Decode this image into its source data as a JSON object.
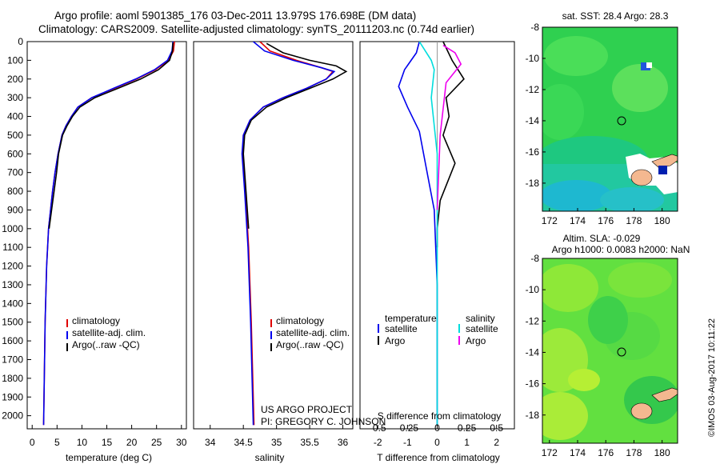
{
  "header": {
    "title_line1": "Argo profile: aoml 5901385_176 03-Dec-2011 13.979S 176.698E (DM data)",
    "title_line2": "Climatology: CARS2009. Satellite-adjusted climatology: synTS_20111203.nc (0.74d earlier)"
  },
  "colors": {
    "climatology": "#e00000",
    "satellite": "#0000ee",
    "argo": "#000000",
    "sat_salinity": "#00dddd",
    "argo_salinity": "#ee00ee"
  },
  "credits": {
    "project": "US ARGO PROJECT",
    "pi": "PI: GREGORY C. JOHNSON",
    "stamp": "©IMOS 03-Aug-2017 10:11:22"
  },
  "chart_data": [
    {
      "type": "line",
      "name": "temperature-profile",
      "xlabel": "temperature (deg C)",
      "ylabel": "",
      "xlim": [
        -1,
        31
      ],
      "ylim": [
        2070,
        0
      ],
      "xticks": [
        0,
        5,
        10,
        15,
        20,
        25,
        30
      ],
      "yticks": [
        0,
        100,
        200,
        300,
        400,
        500,
        600,
        700,
        800,
        900,
        1000,
        1100,
        1200,
        1300,
        1400,
        1500,
        1600,
        1700,
        1800,
        1900,
        2000
      ],
      "legend": [
        "climatology",
        "satellite-adj. clim.",
        "Argo(..raw -QC)"
      ],
      "series": [
        {
          "name": "climatology",
          "color": "#e00000",
          "x": [
            28.6,
            28.4,
            27.4,
            24.8,
            21.0,
            16.5,
            12.0,
            9.2,
            7.9,
            6.8,
            6.0,
            5.2,
            4.6,
            4.1,
            3.7,
            3.3,
            2.9,
            2.6,
            2.3
          ],
          "y": [
            0,
            50,
            100,
            150,
            200,
            250,
            300,
            350,
            400,
            450,
            500,
            600,
            700,
            800,
            900,
            1000,
            1200,
            1500,
            2050
          ]
        },
        {
          "name": "satellite-adj. clim.",
          "color": "#0000ee",
          "x": [
            28.3,
            28.1,
            27.2,
            24.6,
            20.8,
            16.3,
            12.0,
            9.2,
            7.9,
            6.8,
            6.0,
            5.2,
            4.6,
            4.1,
            3.7,
            3.3,
            2.9,
            2.6,
            2.3
          ],
          "y": [
            0,
            50,
            100,
            150,
            200,
            250,
            300,
            350,
            400,
            450,
            500,
            600,
            700,
            800,
            900,
            1000,
            1200,
            1500,
            2050
          ]
        },
        {
          "name": "Argo(..raw -QC)",
          "color": "#000000",
          "x": [
            28.3,
            28.2,
            27.6,
            25.4,
            21.8,
            17.2,
            12.6,
            9.6,
            8.1,
            7.0,
            6.1,
            5.3,
            4.9,
            4.4,
            3.9,
            3.4
          ],
          "y": [
            5,
            50,
            100,
            150,
            200,
            250,
            300,
            350,
            400,
            450,
            500,
            600,
            700,
            800,
            900,
            1000
          ]
        }
      ]
    },
    {
      "type": "line",
      "name": "salinity-profile",
      "xlabel": "salinity",
      "xlim": [
        33.75,
        36.15
      ],
      "xticks": [
        34,
        34.5,
        35,
        35.5,
        36
      ],
      "legend": [
        "climatology",
        "satellite-adj. clim.",
        "Argo(..raw -QC)"
      ],
      "series": [
        {
          "name": "climatology",
          "color": "#e00000",
          "x": [
            34.75,
            34.9,
            35.3,
            35.68,
            35.85,
            35.75,
            35.45,
            35.1,
            34.8,
            34.6,
            34.5,
            34.49,
            34.53,
            34.58,
            34.62,
            34.66
          ],
          "y": [
            0,
            50,
            100,
            140,
            160,
            200,
            250,
            300,
            350,
            420,
            500,
            600,
            800,
            1100,
            1500,
            2050
          ]
        },
        {
          "name": "satellite-adj. clim.",
          "color": "#0000ee",
          "x": [
            34.65,
            34.82,
            35.25,
            35.68,
            35.87,
            35.75,
            35.45,
            35.1,
            34.8,
            34.6,
            34.5,
            34.48,
            34.52,
            34.57,
            34.61,
            34.65
          ],
          "y": [
            0,
            50,
            100,
            140,
            160,
            200,
            250,
            300,
            350,
            420,
            500,
            600,
            800,
            1100,
            1500,
            2050
          ]
        },
        {
          "name": "Argo(..raw -QC)",
          "color": "#000000",
          "x": [
            34.85,
            35.1,
            35.5,
            35.9,
            36.05,
            35.85,
            35.5,
            35.15,
            34.85,
            34.62,
            34.52,
            34.5,
            34.54,
            34.58
          ],
          "y": [
            10,
            60,
            100,
            130,
            160,
            200,
            250,
            300,
            350,
            420,
            500,
            600,
            800,
            1000
          ]
        }
      ]
    },
    {
      "type": "line",
      "name": "difference-profile",
      "xlabel": "T difference from climatology",
      "x2label": "S difference from climatology",
      "xlim": [
        -2.6,
        2.6
      ],
      "xticks": [
        -2,
        -1,
        0,
        1,
        2
      ],
      "x2ticks": [
        "-0.5",
        "-0.25",
        "0",
        "0.25",
        "0.5"
      ],
      "legend_temperature": [
        "temperature",
        "satellite",
        "Argo"
      ],
      "legend_salinity": [
        "salinity",
        "satellite",
        "Argo"
      ],
      "series": [
        {
          "name": "T satellite",
          "color": "#0000ee",
          "x": [
            -0.6,
            -0.7,
            -1.1,
            -1.3,
            -1.0,
            -0.6,
            -0.4,
            -0.1,
            0.0,
            0.0
          ],
          "y": [
            0,
            60,
            150,
            240,
            350,
            480,
            650,
            900,
            1300,
            2050
          ]
        },
        {
          "name": "T Argo",
          "color": "#000000",
          "x": [
            0.2,
            0.5,
            0.9,
            0.3,
            0.4,
            0.2,
            0.6,
            0.1,
            0.0,
            0.0
          ],
          "y": [
            0,
            100,
            200,
            300,
            400,
            500,
            650,
            850,
            1000,
            1100
          ]
        },
        {
          "name": "S satellite",
          "color": "#00dddd",
          "x": [
            -0.6,
            -0.2,
            -0.1,
            -0.2,
            0.0,
            0.0
          ],
          "y": [
            0,
            100,
            150,
            300,
            600,
            2050
          ]
        },
        {
          "name": "S Argo",
          "color": "#ee00ee",
          "x": [
            0.2,
            0.6,
            0.8,
            0.3,
            0.1,
            0.0
          ],
          "y": [
            20,
            60,
            120,
            220,
            500,
            900
          ]
        }
      ]
    }
  ],
  "maps": [
    {
      "title": "sat. SST: 28.4  Argo: 28.3",
      "xticks": [
        "172",
        "174",
        "176",
        "178",
        "180"
      ],
      "yticks": [
        "-8",
        "-10",
        "-12",
        "-14",
        "-16",
        "-18"
      ]
    },
    {
      "title_line1": "Altim. SLA: -0.029",
      "title_line2": "Argo h1000: 0.0083 h2000: NaN",
      "xticks": [
        "172",
        "174",
        "176",
        "178",
        "180"
      ],
      "yticks": [
        "-8",
        "-10",
        "-12",
        "-14",
        "-16",
        "-18"
      ]
    }
  ]
}
